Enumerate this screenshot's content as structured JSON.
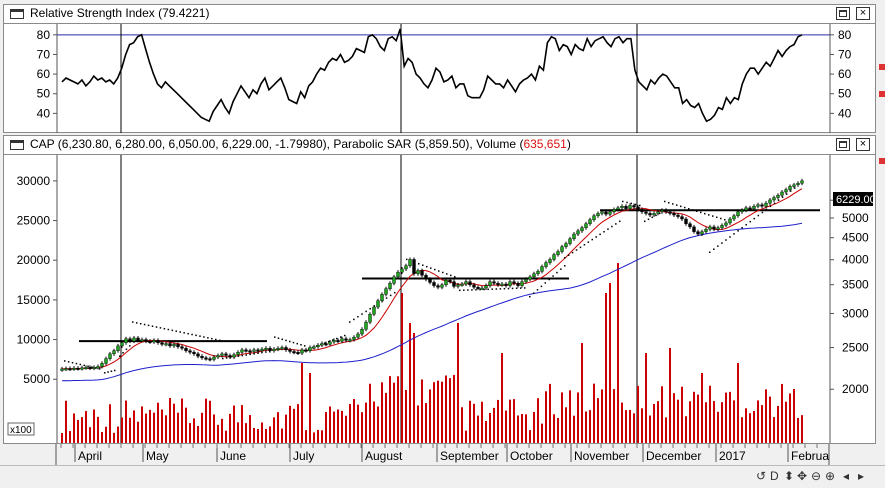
{
  "rsi_panel": {
    "title": "Relative Strength Index (79.4221)"
  },
  "main_panel": {
    "title_prefix": "CAP (6,230.80, 6,280.00, 6,050.00, 6,229.00, -1.79980), Parabolic SAR (5,859.50), Volume (",
    "title_volume": "635,651",
    "title_suffix": ")",
    "price_tag": "6229.00",
    "volume_scale_label": "x100"
  },
  "window_buttons": {
    "maximize": "□",
    "close": "×"
  },
  "nav_buttons": [
    "↺",
    "D",
    "⬍",
    "✥",
    "⊖",
    "⊕",
    "◂",
    "▸"
  ],
  "colors": {
    "up_candle": "#1fa51f",
    "down_candle": "#000000",
    "volume": "#cc0000",
    "ma_red": "#cc0000",
    "ma_blue": "#1f1fcc",
    "rsi_line": "#000000",
    "rsi_ref": "#2a2aa8"
  },
  "chart_data": [
    {
      "type": "line",
      "name": "Relative Strength Index",
      "ylim": [
        30,
        85
      ],
      "yticks": [
        40,
        50,
        60,
        70,
        80
      ],
      "reference_line": 80,
      "values": [
        56,
        58,
        57,
        56,
        55,
        57,
        54,
        56,
        59,
        57,
        58,
        56,
        57,
        55,
        58,
        63,
        70,
        75,
        76,
        79,
        80,
        73,
        66,
        60,
        55,
        53,
        56,
        54,
        52,
        50,
        48,
        46,
        44,
        42,
        40,
        38,
        37,
        36,
        41,
        44,
        47,
        43,
        40,
        46,
        50,
        54,
        51,
        48,
        52,
        50,
        55,
        58,
        52,
        54,
        56,
        58,
        53,
        47,
        46,
        45,
        51,
        48,
        54,
        56,
        60,
        63,
        62,
        66,
        68,
        67,
        70,
        66,
        67,
        69,
        73,
        72,
        71,
        79,
        80,
        78,
        74,
        72,
        78,
        79,
        77,
        83,
        64,
        68,
        66,
        60,
        58,
        55,
        53,
        57,
        63,
        61,
        56,
        57,
        59,
        53,
        55,
        55,
        49,
        48,
        48,
        48,
        52,
        59,
        57,
        55,
        55,
        53,
        57,
        54,
        51,
        55,
        57,
        58,
        60,
        57,
        64,
        62,
        76,
        79,
        78,
        72,
        75,
        74,
        70,
        75,
        73,
        72,
        78,
        74,
        77,
        78,
        79,
        76,
        74,
        78,
        79,
        76,
        78,
        78,
        62,
        56,
        54,
        52,
        57,
        55,
        58,
        60,
        59,
        56,
        53,
        53,
        45,
        47,
        44,
        43,
        45,
        40,
        36,
        37,
        39,
        43,
        42,
        48,
        45,
        48,
        47,
        55,
        60,
        63,
        63,
        60,
        63,
        66,
        64,
        68,
        72,
        69,
        72,
        74,
        75,
        79,
        80
      ]
    },
    {
      "type": "candlestick",
      "name": "CAP",
      "ylim": [
        1500,
        31500
      ],
      "yticks": [
        5000,
        10000,
        15000,
        20000,
        25000,
        30000
      ],
      "right_axis_ticks": [
        2000,
        2500,
        3000,
        3500,
        4000,
        4500,
        5000,
        5500
      ],
      "x_labels": [
        "April",
        "May",
        "June",
        "July",
        "August",
        "September",
        "October",
        "November",
        "December",
        "2017",
        "Februa"
      ],
      "close": [
        6300,
        6350,
        6300,
        6400,
        6350,
        6450,
        6500,
        6400,
        6500,
        6600,
        7000,
        7600,
        8200,
        8600,
        9200,
        9600,
        10100,
        9800,
        10200,
        9900,
        10000,
        9800,
        9700,
        9900,
        9600,
        9400,
        9500,
        9200,
        9400,
        9100,
        8900,
        8600,
        8400,
        8200,
        7900,
        7700,
        7600,
        7500,
        7800,
        8000,
        8200,
        8000,
        7800,
        8100,
        8400,
        8700,
        8600,
        8500,
        8700,
        8600,
        8800,
        8900,
        8600,
        8800,
        8900,
        9000,
        8700,
        8500,
        8400,
        8300,
        8700,
        8600,
        9000,
        9100,
        9300,
        9500,
        9400,
        9700,
        9900,
        9800,
        10100,
        9900,
        10000,
        10300,
        10700,
        11300,
        12200,
        13200,
        14100,
        14900,
        15700,
        16400,
        17100,
        17900,
        18500,
        18900,
        19300,
        20100,
        18300,
        18700,
        18100,
        17600,
        17200,
        16800,
        16600,
        16900,
        17500,
        17300,
        16700,
        16900,
        17000,
        17300,
        16900,
        16600,
        16500,
        16500,
        16800,
        17300,
        17100,
        16900,
        17000,
        16800,
        17300,
        17100,
        16800,
        17300,
        17600,
        17900,
        18300,
        18600,
        19200,
        19700,
        20100,
        20700,
        21100,
        21700,
        22100,
        22700,
        23300,
        23700,
        24100,
        24600,
        25100,
        25600,
        25900,
        26100,
        25800,
        26100,
        26400,
        26600,
        26800,
        26500,
        26900,
        26700,
        26400,
        26100,
        25900,
        25700,
        25900,
        26100,
        26300,
        26100,
        25900,
        25700,
        25500,
        25200,
        24600,
        24200,
        23600,
        23300,
        23600,
        23900,
        24200,
        23900,
        24100,
        24400,
        24700,
        25200,
        25600,
        26100,
        26300,
        26600,
        26500,
        26800,
        27000,
        26800,
        27200,
        27600,
        27900,
        28200,
        28600,
        28900,
        29300,
        29500,
        29700,
        30000
      ]
    },
    {
      "type": "line",
      "name": "Parabolic SAR",
      "segments": [
        {
          "x0": 60,
          "y0": 7400,
          "x1": 95,
          "y1": 6400
        },
        {
          "x0": 100,
          "y0": 5900,
          "x1": 110,
          "y1": 6200
        },
        {
          "x0": 115,
          "y0": 8000,
          "x1": 125,
          "y1": 9300
        },
        {
          "x0": 128,
          "y0": 12300,
          "x1": 215,
          "y1": 10000
        },
        {
          "x0": 218,
          "y0": 7700,
          "x1": 265,
          "y1": 8600
        },
        {
          "x0": 270,
          "y0": 10400,
          "x1": 300,
          "y1": 9300
        },
        {
          "x0": 300,
          "y0": 8700,
          "x1": 340,
          "y1": 10600
        },
        {
          "x0": 345,
          "y0": 12300,
          "x1": 390,
          "y1": 16000
        },
        {
          "x0": 402,
          "y0": 20200,
          "x1": 450,
          "y1": 18000
        },
        {
          "x0": 455,
          "y0": 16300,
          "x1": 520,
          "y1": 16600
        },
        {
          "x0": 525,
          "y0": 15500,
          "x1": 560,
          "y1": 19400
        },
        {
          "x0": 560,
          "y0": 20400,
          "x1": 615,
          "y1": 25000
        },
        {
          "x0": 618,
          "y0": 27500,
          "x1": 635,
          "y1": 27000
        },
        {
          "x0": 640,
          "y0": 25000,
          "x1": 655,
          "y1": 26000
        },
        {
          "x0": 660,
          "y0": 27500,
          "x1": 720,
          "y1": 25200
        },
        {
          "x0": 705,
          "y0": 21100,
          "x1": 790,
          "y1": 29200
        }
      ]
    }
  ]
}
